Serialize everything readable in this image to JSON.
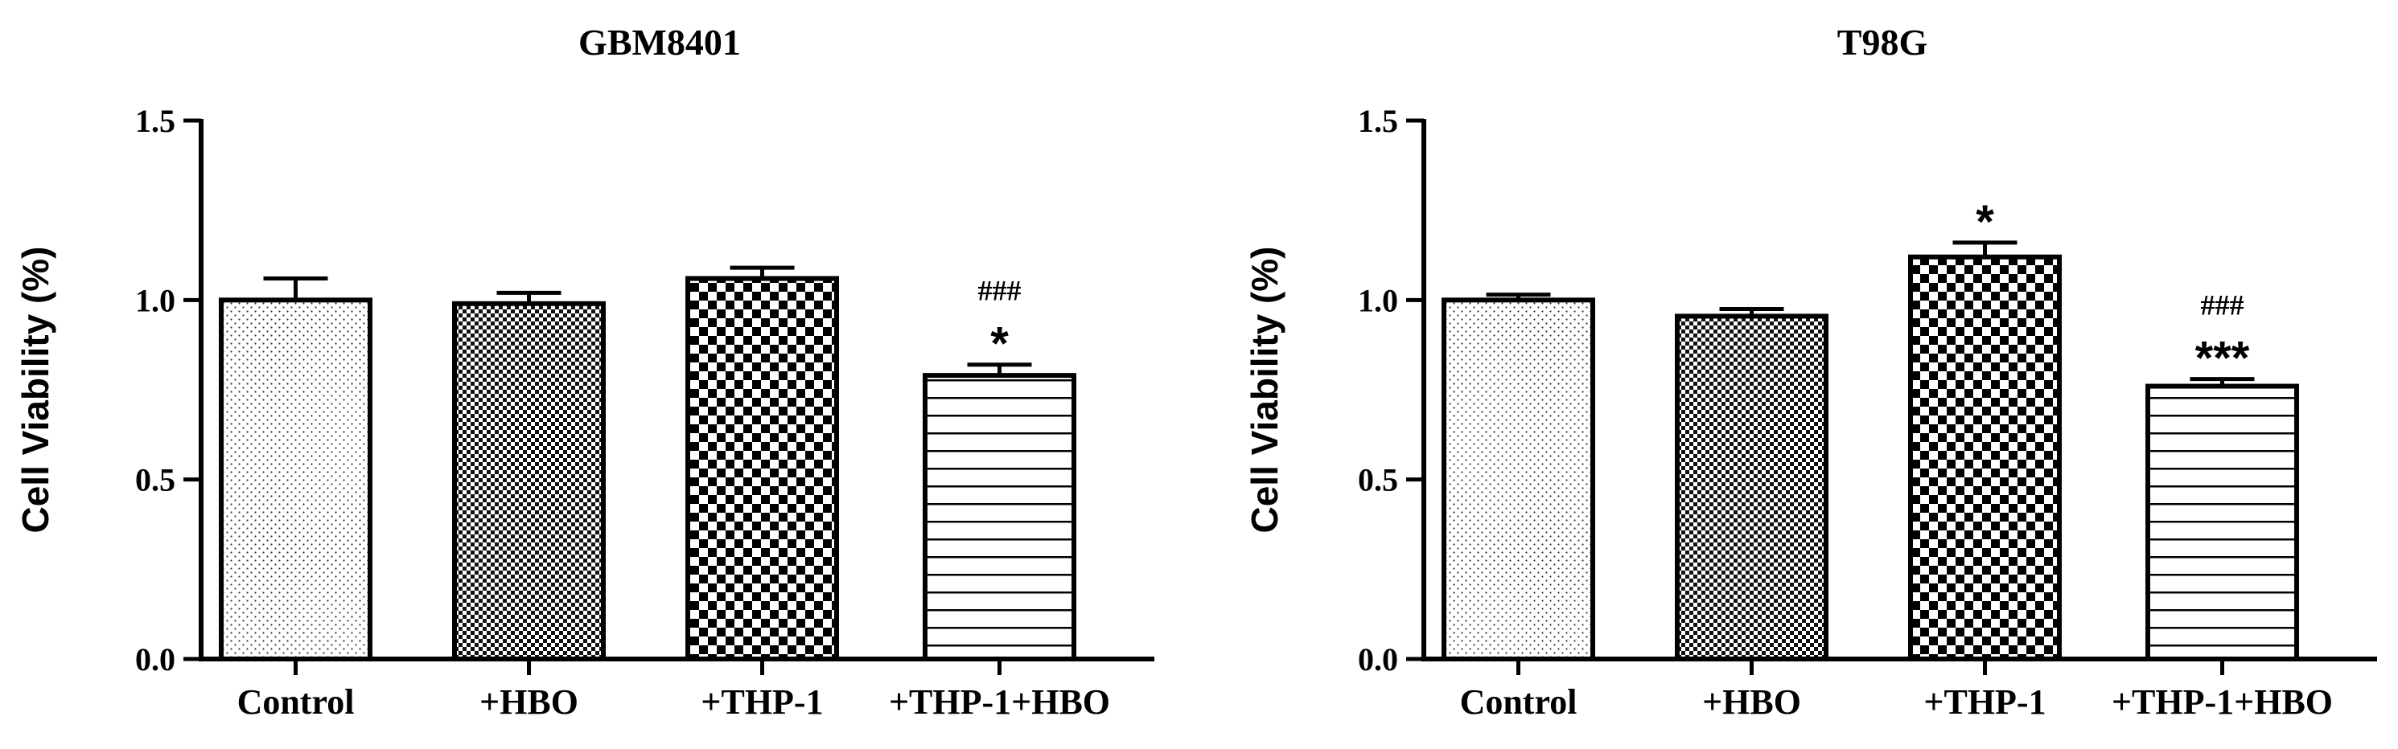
{
  "chart_data": [
    {
      "type": "bar",
      "title": "GBM8401",
      "ylabel": "Cell Viability (%)",
      "xlabel": "",
      "ylim": [
        0,
        1.5
      ],
      "yticks": [
        "0.0",
        "0.5",
        "1.0",
        "1.5"
      ],
      "categories": [
        "Control",
        "+HBO",
        "+THP-1",
        "+THP-1+HBO"
      ],
      "values": [
        1.0,
        0.99,
        1.06,
        0.79
      ],
      "errors": [
        0.06,
        0.03,
        0.03,
        0.03
      ],
      "patterns": [
        "dots",
        "checker-fine",
        "checker-coarse",
        "horizontal-lines"
      ],
      "significance": [
        "",
        "",
        "",
        "*"
      ],
      "significance_hash": [
        "",
        "",
        "",
        "###"
      ]
    },
    {
      "type": "bar",
      "title": "T98G",
      "ylabel": "Cell Viability (%)",
      "xlabel": "",
      "ylim": [
        0,
        1.5
      ],
      "yticks": [
        "0.0",
        "0.5",
        "1.0",
        "1.5"
      ],
      "categories": [
        "Control",
        "+HBO",
        "+THP-1",
        "+THP-1+HBO"
      ],
      "values": [
        1.0,
        0.955,
        1.12,
        0.76
      ],
      "errors": [
        0.015,
        0.02,
        0.04,
        0.02
      ],
      "patterns": [
        "dots",
        "checker-fine",
        "checker-coarse",
        "horizontal-lines"
      ],
      "significance": [
        "",
        "",
        "*",
        "***"
      ],
      "significance_hash": [
        "",
        "",
        "",
        "###"
      ]
    }
  ]
}
